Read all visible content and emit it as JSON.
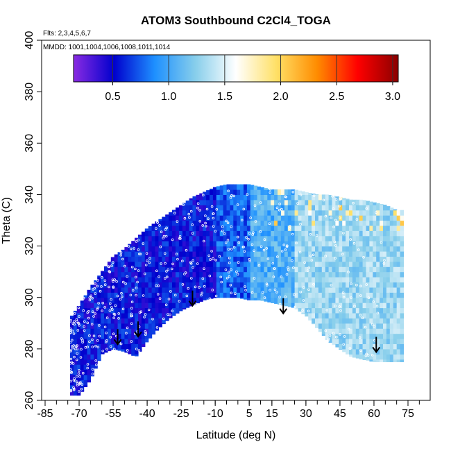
{
  "chart_data": {
    "type": "heatmap",
    "title": "ATOM3 Southbound C2Cl4_TOGA",
    "flights_note": "Flts: 2,3,4,5,6,7",
    "dates_note": "MMDD: 1001,1004,1006,1008,1011,1014",
    "xlabel": "Latitude (deg N)",
    "ylabel": "Theta (C)",
    "xlim": [
      -85,
      85
    ],
    "ylim": [
      260,
      400
    ],
    "x_ticks": [
      -85,
      -70,
      -55,
      -40,
      -25,
      -10,
      5,
      15,
      30,
      45,
      60,
      75
    ],
    "y_ticks": [
      260,
      280,
      300,
      320,
      340,
      360,
      380,
      400
    ],
    "colorbar": {
      "range": [
        0.15,
        3.05
      ],
      "ticks": [
        0.5,
        1.0,
        1.5,
        2.0,
        2.5,
        3.0
      ],
      "tick_labels": [
        "0.5",
        "1.0",
        "1.5",
        "2.0",
        "2.5",
        "3.0"
      ],
      "colors": [
        "#8a2be2",
        "#0000cd",
        "#1e90ff",
        "#87ceeb",
        "#ffffff",
        "#ffe066",
        "#ff8c00",
        "#ff0000",
        "#8b0000"
      ]
    },
    "tropopause_arrows": [
      {
        "lat": -53,
        "theta": 285
      },
      {
        "lat": -44,
        "theta": 288
      },
      {
        "lat": -20,
        "theta": 300
      },
      {
        "lat": 20,
        "theta": 297
      },
      {
        "lat": 61,
        "theta": 282
      }
    ],
    "field_envelope": {
      "lat": [
        -74,
        -70,
        -65,
        -60,
        -55,
        -50,
        -45,
        -40,
        -35,
        -30,
        -25,
        -20,
        -15,
        -10,
        -5,
        0,
        5,
        10,
        15,
        20,
        25,
        30,
        35,
        40,
        45,
        50,
        55,
        60,
        65,
        70,
        72
      ],
      "theta_top": [
        292,
        297,
        304,
        310,
        316,
        319,
        323,
        327,
        330,
        333,
        336,
        339,
        341,
        343,
        344,
        344,
        344,
        343,
        342,
        342,
        342,
        341,
        340,
        340,
        339,
        338,
        338,
        337,
        336,
        334,
        334
      ],
      "theta_bottom": [
        262,
        262,
        268,
        278,
        280,
        279,
        277,
        283,
        288,
        292,
        295,
        297,
        299,
        300,
        300,
        300,
        299,
        299,
        298,
        297,
        296,
        293,
        288,
        283,
        280,
        277,
        276,
        275,
        275,
        275,
        275
      ]
    },
    "zone_values": [
      {
        "lat_min": -74,
        "lat_max": -10,
        "value": 0.55
      },
      {
        "lat_min": -10,
        "lat_max": 5,
        "value": 0.75
      },
      {
        "lat_min": 5,
        "lat_max": 25,
        "value": 1.05
      },
      {
        "lat_min": 25,
        "lat_max": 72,
        "value": 1.3
      }
    ]
  }
}
